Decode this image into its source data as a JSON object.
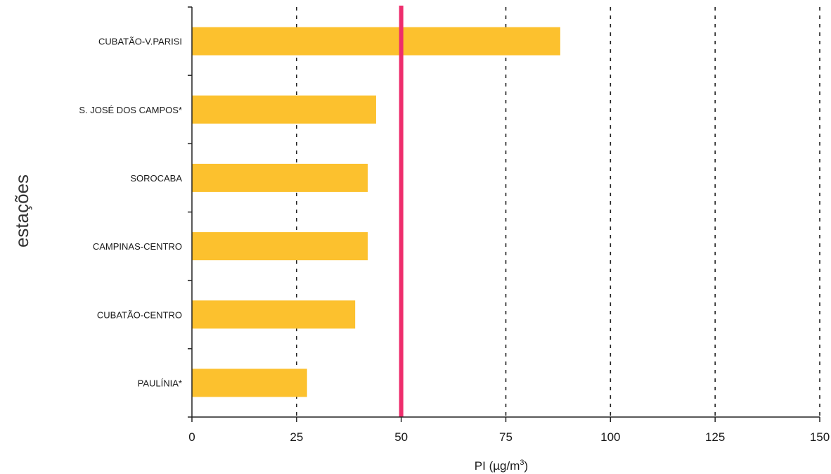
{
  "chart_data": {
    "type": "bar",
    "orientation": "horizontal",
    "categories": [
      "CUBATÃO-V.PARISI",
      "S. JOSÉ DOS CAMPOS*",
      "SOROCABA",
      "CAMPINAS-CENTRO",
      "CUBATÃO-CENTRO",
      "PAULÍNIA*"
    ],
    "values": [
      88,
      44,
      42,
      42,
      39,
      27.5
    ],
    "xlabel_main": "PI (",
    "xlabel_unit": "µg/m",
    "xlabel_sup": "3",
    "xlabel_close": ")",
    "ylabel": "estações",
    "xlim": [
      0,
      150
    ],
    "xticks": [
      0,
      25,
      50,
      75,
      100,
      125,
      150
    ],
    "xtick_labels": [
      "0",
      "25",
      "50",
      "75",
      "100",
      "125",
      "150"
    ],
    "reference_line": 50,
    "grid": "vertical dashed",
    "colors": {
      "bar": "#FCC12E",
      "reference": "#EE2D6C",
      "grid": "#222222",
      "axis": "#222222"
    }
  }
}
